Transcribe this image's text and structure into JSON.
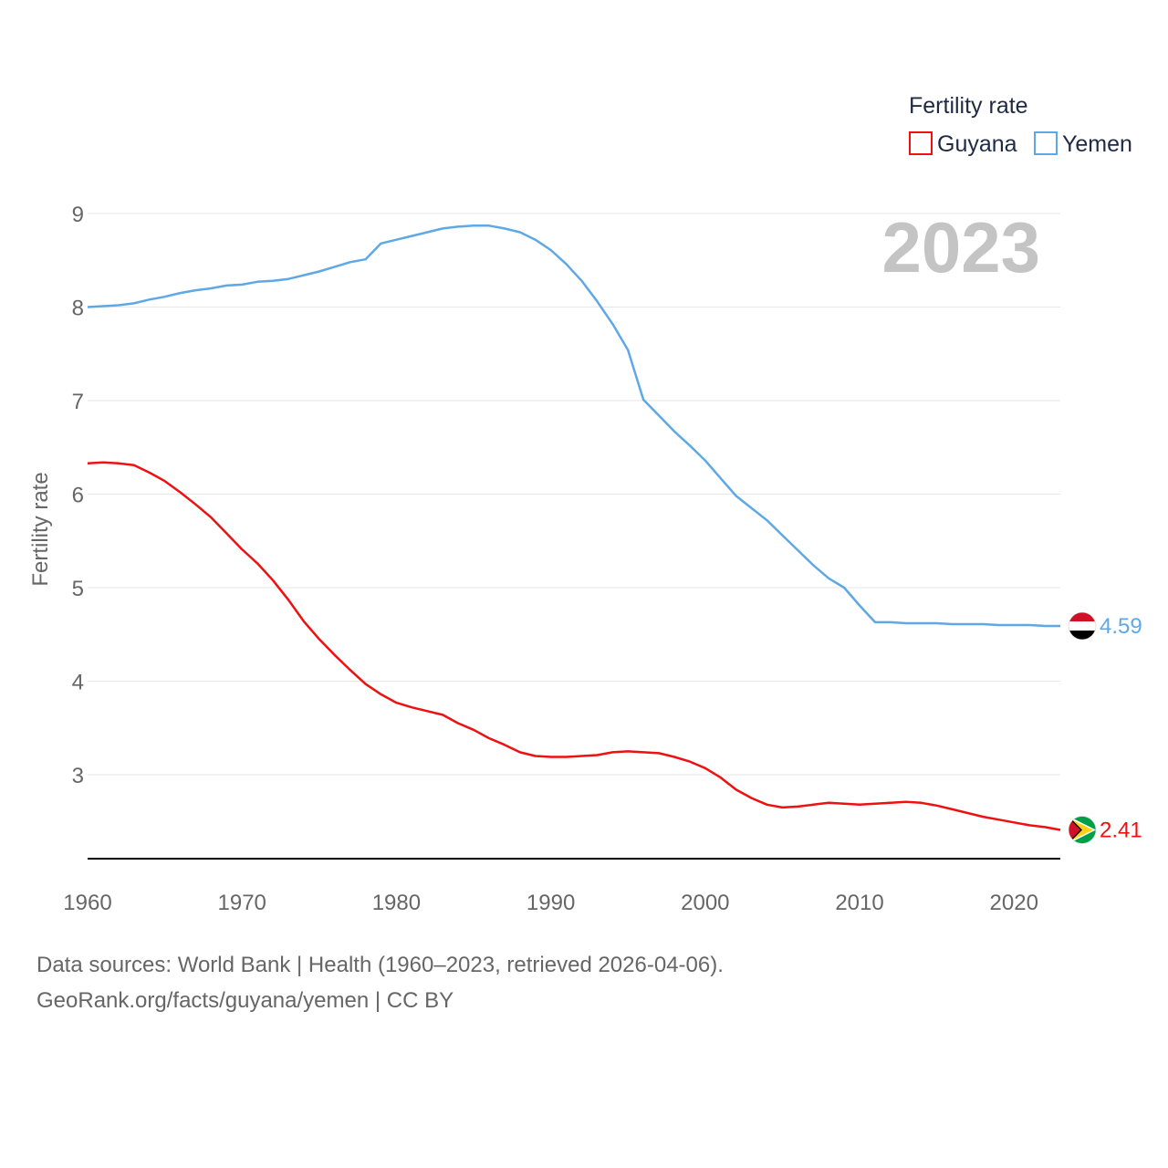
{
  "chart_data": {
    "type": "line",
    "legend": {
      "title": "Fertility rate",
      "position": "top-right"
    },
    "ylabel": "Fertility rate",
    "xlabel": "",
    "xlim": [
      1960,
      2023
    ],
    "ylim": [
      2.1,
      9.0
    ],
    "x_ticks": [
      1960,
      1970,
      1980,
      1990,
      2000,
      2010,
      2020
    ],
    "y_ticks": [
      3,
      4,
      5,
      6,
      7,
      8,
      9
    ],
    "grid": true,
    "year_label": "2023",
    "x": [
      1960,
      1961,
      1962,
      1963,
      1964,
      1965,
      1966,
      1967,
      1968,
      1969,
      1970,
      1971,
      1972,
      1973,
      1974,
      1975,
      1976,
      1977,
      1978,
      1979,
      1980,
      1981,
      1982,
      1983,
      1984,
      1985,
      1986,
      1987,
      1988,
      1989,
      1990,
      1991,
      1992,
      1993,
      1994,
      1995,
      1996,
      1997,
      1998,
      1999,
      2000,
      2001,
      2002,
      2003,
      2004,
      2005,
      2006,
      2007,
      2008,
      2009,
      2010,
      2011,
      2012,
      2013,
      2014,
      2015,
      2016,
      2017,
      2018,
      2019,
      2020,
      2021,
      2022,
      2023
    ],
    "series": [
      {
        "name": "Guyana",
        "color": "#ee1111",
        "end_label": "2.41",
        "flag": "guyana-flag",
        "values": [
          6.33,
          6.34,
          6.33,
          6.31,
          6.23,
          6.14,
          6.02,
          5.89,
          5.75,
          5.58,
          5.41,
          5.26,
          5.08,
          4.87,
          4.64,
          4.45,
          4.28,
          4.12,
          3.97,
          3.86,
          3.77,
          3.72,
          3.68,
          3.64,
          3.55,
          3.48,
          3.39,
          3.32,
          3.24,
          3.2,
          3.19,
          3.19,
          3.2,
          3.21,
          3.24,
          3.25,
          3.24,
          3.23,
          3.19,
          3.14,
          3.07,
          2.97,
          2.84,
          2.75,
          2.68,
          2.65,
          2.66,
          2.68,
          2.7,
          2.69,
          2.68,
          2.69,
          2.7,
          2.71,
          2.7,
          2.67,
          2.63,
          2.59,
          2.55,
          2.52,
          2.49,
          2.46,
          2.44,
          2.41
        ]
      },
      {
        "name": "Yemen",
        "color": "#5fa8e6",
        "end_label": "4.59",
        "flag": "yemen-flag",
        "values": [
          8.0,
          8.01,
          8.02,
          8.04,
          8.08,
          8.11,
          8.15,
          8.18,
          8.2,
          8.23,
          8.24,
          8.27,
          8.28,
          8.3,
          8.34,
          8.38,
          8.43,
          8.48,
          8.51,
          8.68,
          8.72,
          8.76,
          8.8,
          8.84,
          8.86,
          8.87,
          8.87,
          8.84,
          8.8,
          8.72,
          8.61,
          8.46,
          8.28,
          8.06,
          7.82,
          7.54,
          7.01,
          6.84,
          6.67,
          6.52,
          6.36,
          6.17,
          5.98,
          5.85,
          5.72,
          5.56,
          5.4,
          5.24,
          5.1,
          5.0,
          4.81,
          4.63,
          4.63,
          4.62,
          4.62,
          4.62,
          4.61,
          4.61,
          4.61,
          4.6,
          4.6,
          4.6,
          4.59,
          4.59
        ]
      }
    ]
  },
  "footer": {
    "sources": "Data sources: World Bank | Health (1960–2023, retrieved 2026-04-06).",
    "attribution": "GeoRank.org/facts/guyana/yemen | CC BY"
  }
}
